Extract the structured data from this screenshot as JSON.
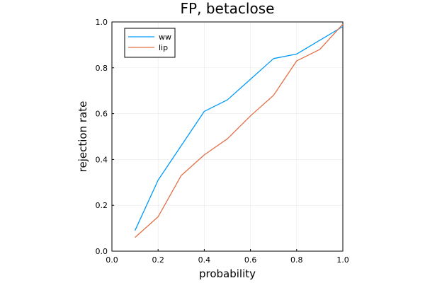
{
  "chart_data": {
    "type": "line",
    "title": "FP, betaclose",
    "xlabel": "probability",
    "ylabel": "rejection rate",
    "xlim": [
      0.0,
      1.0
    ],
    "ylim": [
      0.0,
      1.0
    ],
    "xticks": [
      "0.0",
      "0.2",
      "0.4",
      "0.6",
      "0.8",
      "1.0"
    ],
    "yticks": [
      "0.0",
      "0.2",
      "0.4",
      "0.6",
      "0.8",
      "1.0"
    ],
    "grid": true,
    "legend_position": "top-left",
    "series": [
      {
        "name": "ww",
        "color": "#009AF9",
        "x": [
          0.1,
          0.2,
          0.3,
          0.4,
          0.5,
          0.6,
          0.7,
          0.8,
          0.9,
          1.0
        ],
        "y": [
          0.09,
          0.31,
          0.46,
          0.61,
          0.66,
          0.75,
          0.84,
          0.86,
          0.92,
          0.98
        ]
      },
      {
        "name": "lip",
        "color": "#E26F46",
        "x": [
          0.1,
          0.2,
          0.3,
          0.4,
          0.5,
          0.6,
          0.7,
          0.8,
          0.9,
          1.0
        ],
        "y": [
          0.06,
          0.15,
          0.33,
          0.42,
          0.49,
          0.59,
          0.68,
          0.83,
          0.88,
          0.99
        ]
      }
    ]
  }
}
